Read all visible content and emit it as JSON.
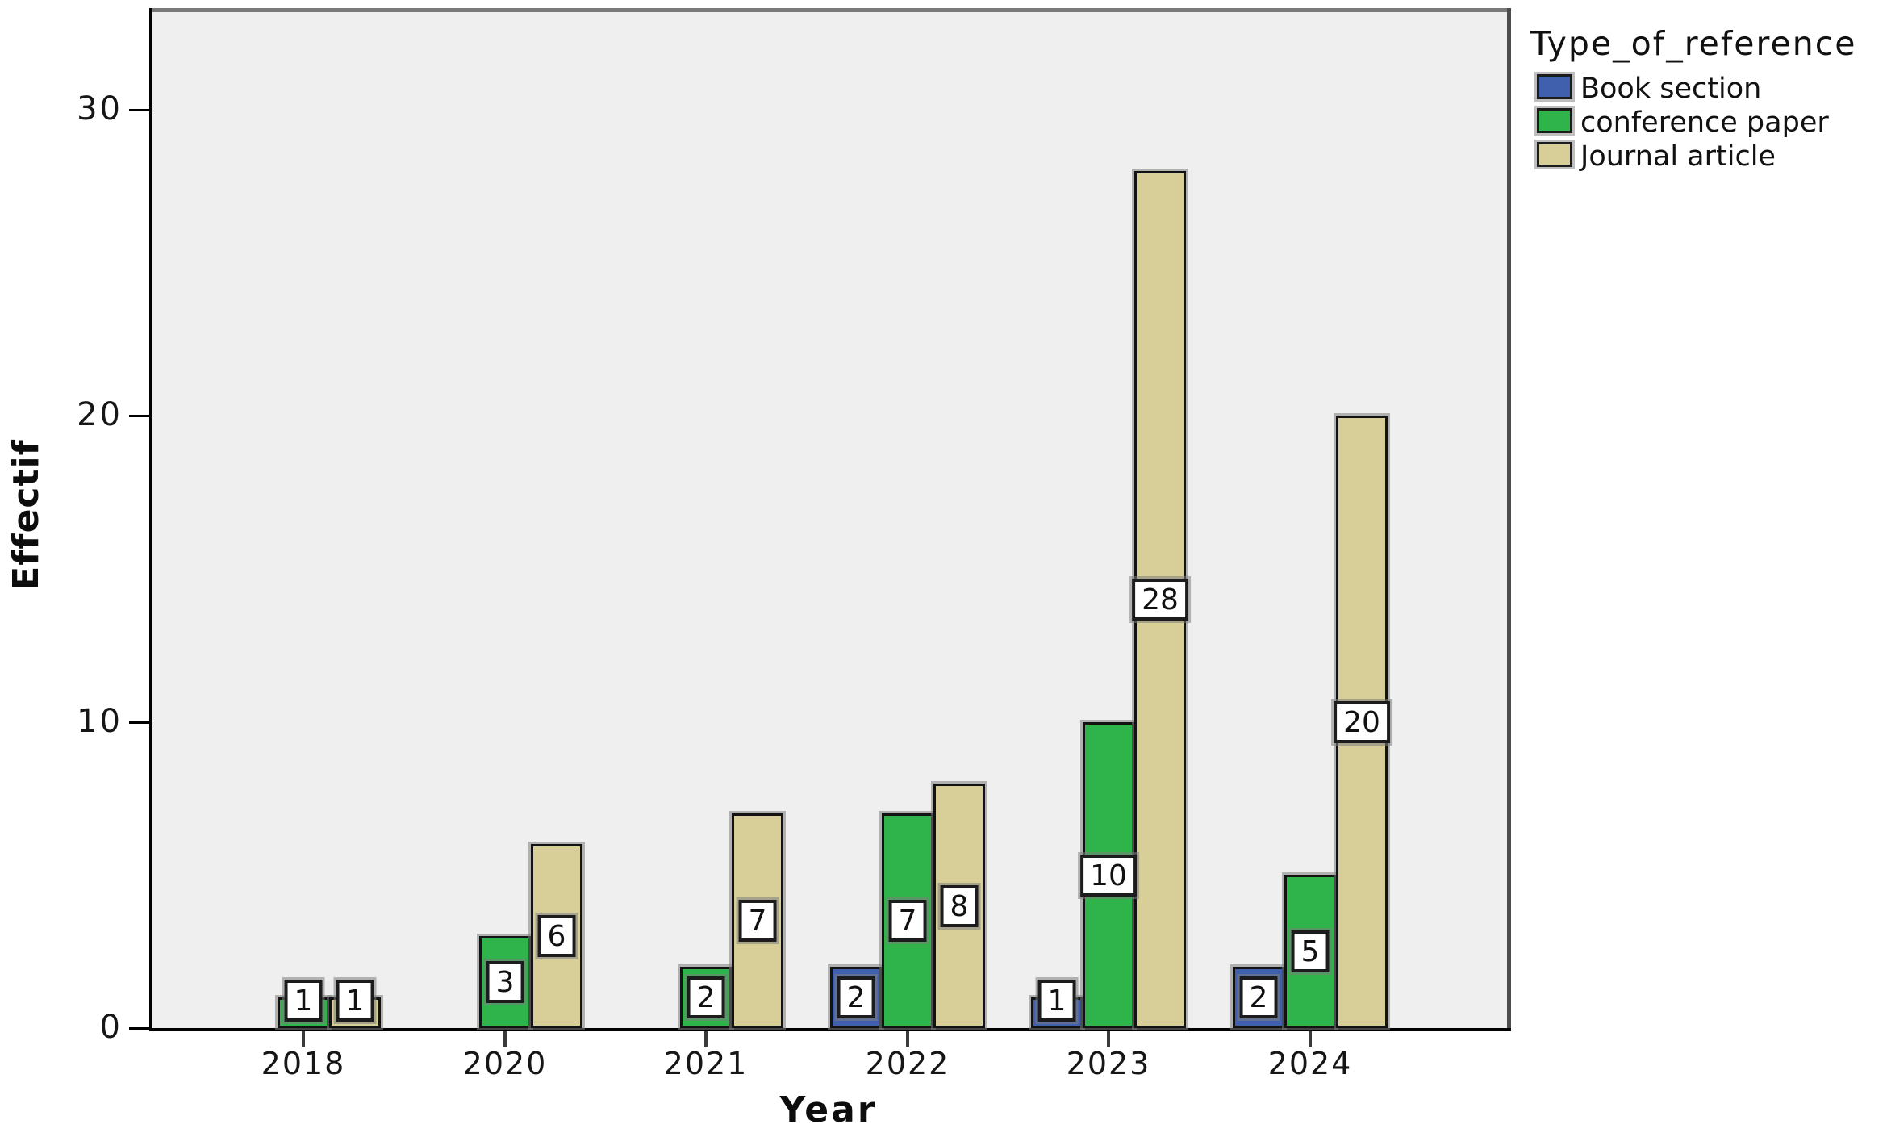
{
  "chart_data": {
    "type": "bar",
    "title": "",
    "ylabel": "Effectif",
    "xlabel": "Year",
    "legend_title": "Type_of_reference",
    "categories": [
      "2018",
      "2020",
      "2021",
      "2022",
      "2023",
      "2024"
    ],
    "yticks": [
      0,
      10,
      20,
      30
    ],
    "ylim": [
      0,
      33.3
    ],
    "grid": false,
    "bar_value_labels": true,
    "legend_position": "outside-top-right",
    "plot_bg_color": "#EFEFEF",
    "series": [
      {
        "name": "Book section",
        "color": "#4060AE",
        "values": [
          0,
          0,
          0,
          2,
          1,
          2
        ]
      },
      {
        "name": "conference paper",
        "color": "#2EB44A",
        "values": [
          1,
          3,
          2,
          7,
          10,
          5
        ]
      },
      {
        "name": "Journal article",
        "color": "#D7CE98",
        "values": [
          1,
          6,
          7,
          8,
          28,
          20
        ]
      }
    ]
  }
}
